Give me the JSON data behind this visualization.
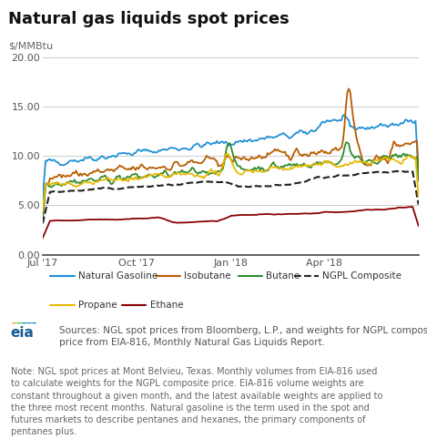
{
  "title": "Natural gas liquids spot prices",
  "ylabel": "$/MMBtu",
  "ylim": [
    0,
    20.5
  ],
  "yticks": [
    0.0,
    5.0,
    10.0,
    15.0,
    20.0
  ],
  "background_color": "#ffffff",
  "plot_bg_color": "#ffffff",
  "grid_color": "#cccccc",
  "series": {
    "Natural Gasoline": {
      "color": "#1e90d4",
      "style": "-",
      "lw": 1.3
    },
    "Isobutane": {
      "color": "#b85c00",
      "style": "-",
      "lw": 1.3
    },
    "Butane": {
      "color": "#2e8b2e",
      "style": "-",
      "lw": 1.3
    },
    "NGPL Composite": {
      "color": "#222222",
      "style": "--",
      "lw": 1.5
    },
    "Propane": {
      "color": "#e8b800",
      "style": "-",
      "lw": 1.3
    },
    "Ethane": {
      "color": "#8B0000",
      "style": "-",
      "lw": 1.3
    }
  },
  "legend_bg": "#efefef",
  "legend_border": "#cccccc",
  "source_text": "Sources: NGL spot prices from Bloomberg, L.P., and weights for NGPL composite\nprice from EIA-816, Monthly Natural Gas Liquids Report.",
  "note_text": "Note: NGL spot prices at Mont Belvieu, Texas. Monthly volumes from EIA-816 used\nto calculate weights for the NGPL composite price. EIA-816 volume weights are\nconstant throughout a given month, and the latest available weights are applied to\nthe three most recent months. Natural gasoline is the term used in the spot and\nfutures markets to describe pentanes and hexanes, the primary components of\npentanes plus.",
  "title_fontsize": 13,
  "axis_label_fontsize": 8,
  "tick_fontsize": 8,
  "legend_fontsize": 7.5,
  "note_fontsize": 7.0,
  "source_fontsize": 7.5,
  "title_color": "#111111",
  "axis_label_color": "#666666",
  "tick_color": "#555555",
  "note_color": "#666666",
  "source_color": "#555555",
  "xtick_labels": [
    "Jul '17",
    "Oct '17",
    "Jan '18",
    "Apr '18"
  ],
  "xtick_pos": [
    0.0,
    0.25,
    0.5,
    0.75
  ]
}
